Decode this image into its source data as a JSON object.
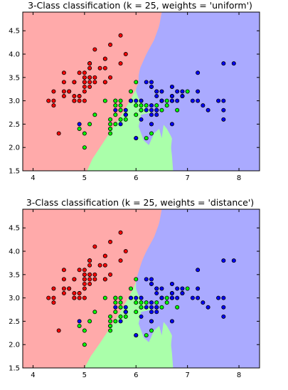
{
  "colors": {
    "bg_class0": "#FFAAAA",
    "bg_class1": "#AAFFAA",
    "bg_class2": "#AAAAFF",
    "pt_class0": "#FF0000",
    "pt_class1": "#00FF00",
    "pt_class2": "#0000FF",
    "point_edge": "#000000"
  },
  "chart_data": [
    {
      "type": "scatter",
      "title": "3-Class classification (k = 25, weights = 'uniform')",
      "xlabel": "",
      "ylabel": "",
      "xlim": [
        3.8,
        8.4
      ],
      "ylim": [
        1.5,
        4.9
      ],
      "xticks": [
        4,
        5,
        6,
        7,
        8
      ],
      "yticks": [
        1.5,
        2.0,
        2.5,
        3.0,
        3.5,
        4.0,
        4.5
      ],
      "x_tick_labels": [
        "4",
        "5",
        "6",
        "7",
        "8"
      ],
      "y_tick_labels": [
        "1.5",
        "2.0",
        "2.5",
        "3.0",
        "3.5",
        "4.0",
        "4.5"
      ],
      "grid": false,
      "series": [
        {
          "class": 0,
          "x": [
            5.1,
            4.9,
            4.7,
            4.6,
            5.0,
            5.4,
            4.6,
            5.0,
            4.4,
            4.9,
            5.4,
            4.8,
            4.8,
            4.3,
            5.8,
            5.7,
            5.4,
            5.1,
            5.7,
            5.1,
            5.4,
            5.1,
            4.6,
            5.1,
            4.8,
            5.0,
            5.0,
            5.2,
            5.2,
            4.7,
            4.8,
            5.4,
            5.2,
            5.5,
            4.9,
            5.0,
            5.5,
            4.9,
            4.4,
            5.1,
            5.0,
            4.5,
            4.4,
            5.0,
            5.1,
            4.8,
            5.1,
            4.6,
            5.3,
            5.0
          ],
          "y": [
            3.5,
            3.0,
            3.2,
            3.1,
            3.6,
            3.9,
            3.4,
            3.4,
            2.9,
            3.1,
            3.7,
            3.4,
            3.0,
            3.0,
            4.0,
            4.4,
            3.9,
            3.5,
            3.8,
            3.8,
            3.4,
            3.7,
            3.6,
            3.3,
            3.4,
            3.0,
            3.4,
            3.5,
            3.4,
            3.2,
            3.1,
            3.4,
            4.1,
            4.2,
            3.1,
            3.2,
            3.5,
            3.6,
            3.0,
            3.4,
            3.5,
            2.3,
            3.2,
            3.5,
            3.8,
            3.0,
            3.8,
            3.2,
            3.7,
            3.3
          ]
        },
        {
          "class": 1,
          "x": [
            7.0,
            6.4,
            6.9,
            5.5,
            6.5,
            5.7,
            6.3,
            4.9,
            6.6,
            5.2,
            5.0,
            5.9,
            6.0,
            6.1,
            5.6,
            6.7,
            5.6,
            5.8,
            6.2,
            5.6,
            5.9,
            6.1,
            6.3,
            6.1,
            6.4,
            6.6,
            6.8,
            6.7,
            6.0,
            5.7,
            5.5,
            5.5,
            5.8,
            6.0,
            5.4,
            6.0,
            6.7,
            6.3,
            5.6,
            5.5,
            5.5,
            6.1,
            5.8,
            5.0,
            5.6,
            5.7,
            5.7,
            6.2,
            5.1,
            5.7
          ],
          "y": [
            3.2,
            3.2,
            3.1,
            2.3,
            2.8,
            2.8,
            3.3,
            2.4,
            2.9,
            2.7,
            2.0,
            3.0,
            2.2,
            2.9,
            2.9,
            3.1,
            3.0,
            2.7,
            2.2,
            2.5,
            3.2,
            2.8,
            2.5,
            2.8,
            2.9,
            3.0,
            2.8,
            3.0,
            2.9,
            2.6,
            2.4,
            2.4,
            2.7,
            2.7,
            3.0,
            3.4,
            3.1,
            2.3,
            3.0,
            2.5,
            2.6,
            3.0,
            2.6,
            2.3,
            2.7,
            3.0,
            2.9,
            2.9,
            2.5,
            2.8
          ]
        },
        {
          "class": 2,
          "x": [
            6.3,
            5.8,
            7.1,
            6.3,
            6.5,
            7.6,
            4.9,
            7.3,
            6.7,
            7.2,
            6.5,
            6.4,
            6.8,
            5.7,
            5.8,
            6.4,
            6.5,
            7.7,
            7.7,
            6.0,
            6.9,
            5.6,
            7.7,
            6.3,
            6.7,
            7.2,
            6.2,
            6.1,
            6.4,
            7.2,
            7.4,
            7.9,
            6.4,
            6.3,
            6.1,
            7.7,
            6.3,
            6.4,
            6.0,
            6.9,
            6.7,
            6.9,
            5.8,
            6.8,
            6.7,
            6.7,
            6.3,
            6.5,
            6.2,
            5.9
          ],
          "y": [
            3.3,
            2.7,
            3.0,
            2.9,
            3.0,
            3.0,
            2.5,
            2.9,
            2.5,
            3.6,
            3.2,
            2.7,
            3.0,
            2.5,
            2.8,
            3.2,
            3.0,
            3.8,
            2.6,
            2.2,
            3.2,
            2.8,
            2.8,
            2.7,
            3.3,
            3.2,
            2.8,
            3.0,
            2.8,
            3.0,
            2.8,
            3.8,
            2.8,
            2.8,
            2.6,
            3.0,
            3.4,
            3.1,
            3.0,
            3.1,
            3.1,
            3.1,
            2.7,
            3.2,
            3.3,
            3.0,
            2.5,
            3.0,
            3.4,
            3.0
          ]
        }
      ]
    },
    {
      "type": "scatter",
      "title": "3-Class classification (k = 25, weights = 'distance')",
      "xlabel": "",
      "ylabel": "",
      "xlim": [
        3.8,
        8.4
      ],
      "ylim": [
        1.5,
        4.9
      ],
      "xticks": [
        4,
        5,
        6,
        7,
        8
      ],
      "yticks": [
        1.5,
        2.0,
        2.5,
        3.0,
        3.5,
        4.0,
        4.5
      ],
      "x_tick_labels": [
        "4",
        "5",
        "6",
        "7",
        "8"
      ],
      "y_tick_labels": [
        "1.5",
        "2.0",
        "2.5",
        "3.0",
        "3.5",
        "4.0",
        "4.5"
      ],
      "grid": false,
      "series": "same as first chart"
    }
  ]
}
